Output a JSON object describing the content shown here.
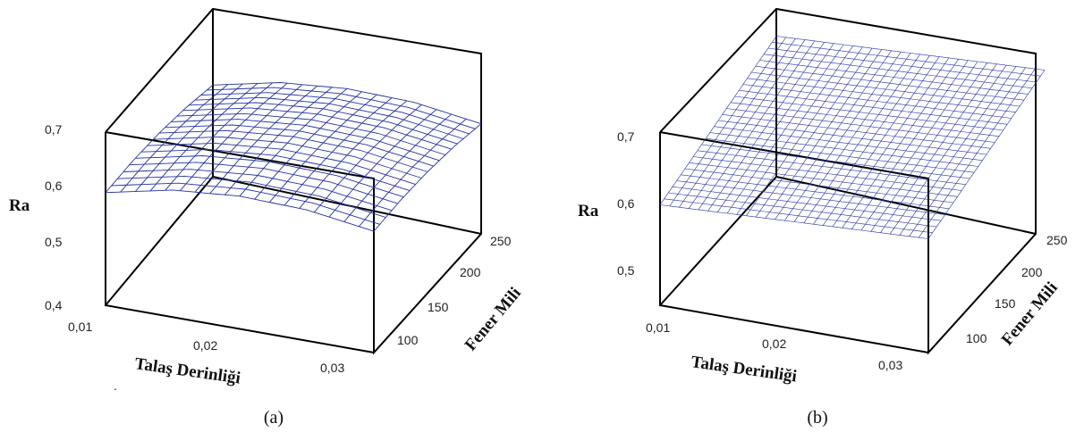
{
  "chart_data": [
    {
      "type": "surface",
      "panel_label": "(a)",
      "zlabel": "Ra",
      "xlabel": "Talaş Derinliği",
      "ylabel": "Fener Mili",
      "z_ticks": [
        "0,7",
        "0,6",
        "0,5",
        "0,4"
      ],
      "x_ticks": [
        "0,01",
        "0,02",
        "0,03"
      ],
      "y_ticks": [
        "100",
        "150",
        "200",
        "250"
      ],
      "xlim": [
        0.01,
        0.03
      ],
      "ylim": [
        75,
        250
      ],
      "zlim": [
        0.4,
        0.75
      ],
      "surface_color": "#2433a3",
      "surface": {
        "x": [
          0.01,
          0.015,
          0.02,
          0.025,
          0.03
        ],
        "y": [
          75,
          118.75,
          162.5,
          206.25,
          250
        ],
        "z": [
          [
            0.636,
            0.666,
            0.678,
            0.674,
            0.654
          ],
          [
            0.634,
            0.664,
            0.676,
            0.672,
            0.652
          ],
          [
            0.626,
            0.656,
            0.668,
            0.664,
            0.644
          ],
          [
            0.612,
            0.642,
            0.654,
            0.65,
            0.63
          ],
          [
            0.592,
            0.622,
            0.634,
            0.63,
            0.61
          ]
        ]
      }
    },
    {
      "type": "surface",
      "panel_label": "(b)",
      "zlabel": "Ra",
      "xlabel": "Talaş Derinliği",
      "ylabel": "Fener Mili",
      "z_ticks": [
        "0,7",
        "0,6",
        "0,5"
      ],
      "x_ticks": [
        "0,01",
        "0,02",
        "0,03"
      ],
      "y_ticks": [
        "100",
        "150",
        "200",
        "250"
      ],
      "xlim": [
        0.01,
        0.03
      ],
      "ylim": [
        75,
        250
      ],
      "zlim": [
        0.45,
        0.75
      ],
      "surface_color": "#2433a3",
      "surface": {
        "x": [
          0.01,
          0.03
        ],
        "y": [
          75,
          250
        ],
        "z": [
          [
            0.6,
            0.62
          ],
          [
            0.66,
            0.68
          ]
        ]
      }
    }
  ],
  "stray_mark": "."
}
